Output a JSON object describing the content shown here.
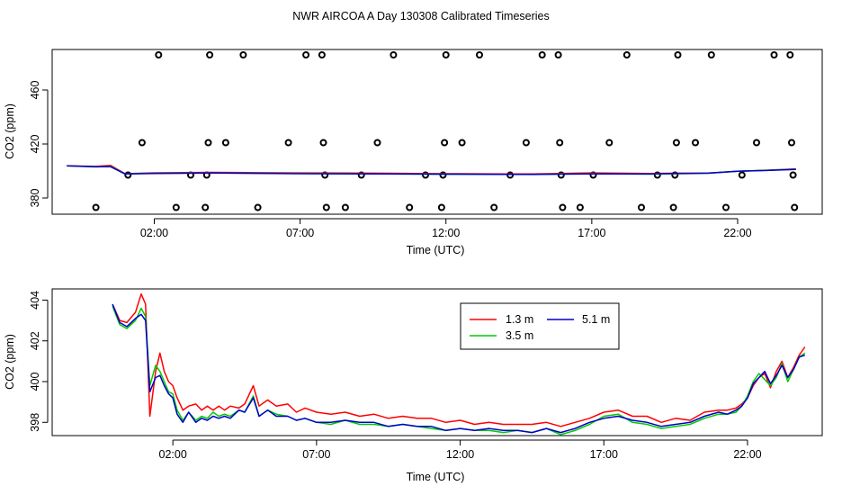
{
  "title": "NWR AIRCOA A  Day 130308  Calibrated Timeseries",
  "chart_data": [
    {
      "type": "scatter",
      "panel": "top",
      "xlabel": "Time (UTC)",
      "ylabel": "CO2 (ppm)",
      "xlim": [
        -1.5,
        24.9
      ],
      "ylim": [
        368,
        490
      ],
      "xticks": [
        2,
        7,
        12,
        17,
        22
      ],
      "xtick_labels": [
        "02:00",
        "07:00",
        "12:00",
        "17:00",
        "22:00"
      ],
      "yticks": [
        380,
        420,
        460
      ],
      "ytick_labels": [
        "380",
        "420",
        "460"
      ],
      "grid": false,
      "reference_points": [
        {
          "x": 0.0,
          "y": 373
        },
        {
          "x": 1.1,
          "y": 397
        },
        {
          "x": 1.58,
          "y": 421
        },
        {
          "x": 2.15,
          "y": 486
        },
        {
          "x": 2.75,
          "y": 373
        },
        {
          "x": 3.25,
          "y": 397
        },
        {
          "x": 3.75,
          "y": 373
        },
        {
          "x": 3.8,
          "y": 397
        },
        {
          "x": 3.85,
          "y": 421
        },
        {
          "x": 3.9,
          "y": 486
        },
        {
          "x": 4.45,
          "y": 421
        },
        {
          "x": 5.05,
          "y": 486
        },
        {
          "x": 5.55,
          "y": 373
        },
        {
          "x": 6.6,
          "y": 421
        },
        {
          "x": 7.2,
          "y": 486
        },
        {
          "x": 7.75,
          "y": 486
        },
        {
          "x": 7.8,
          "y": 421
        },
        {
          "x": 7.85,
          "y": 397
        },
        {
          "x": 7.9,
          "y": 373
        },
        {
          "x": 8.55,
          "y": 373
        },
        {
          "x": 9.1,
          "y": 397
        },
        {
          "x": 9.65,
          "y": 421
        },
        {
          "x": 10.2,
          "y": 486
        },
        {
          "x": 10.75,
          "y": 373
        },
        {
          "x": 11.3,
          "y": 397
        },
        {
          "x": 11.85,
          "y": 373
        },
        {
          "x": 11.9,
          "y": 397
        },
        {
          "x": 11.95,
          "y": 421
        },
        {
          "x": 12.0,
          "y": 486
        },
        {
          "x": 12.55,
          "y": 421
        },
        {
          "x": 13.15,
          "y": 486
        },
        {
          "x": 13.65,
          "y": 373
        },
        {
          "x": 14.2,
          "y": 397
        },
        {
          "x": 14.75,
          "y": 421
        },
        {
          "x": 15.3,
          "y": 486
        },
        {
          "x": 15.85,
          "y": 486
        },
        {
          "x": 15.9,
          "y": 421
        },
        {
          "x": 15.95,
          "y": 397
        },
        {
          "x": 16.0,
          "y": 373
        },
        {
          "x": 16.6,
          "y": 373
        },
        {
          "x": 17.05,
          "y": 397
        },
        {
          "x": 17.6,
          "y": 421
        },
        {
          "x": 18.2,
          "y": 486
        },
        {
          "x": 18.7,
          "y": 373
        },
        {
          "x": 19.25,
          "y": 397
        },
        {
          "x": 19.8,
          "y": 373
        },
        {
          "x": 19.85,
          "y": 397
        },
        {
          "x": 19.9,
          "y": 421
        },
        {
          "x": 19.95,
          "y": 486
        },
        {
          "x": 20.55,
          "y": 421
        },
        {
          "x": 21.1,
          "y": 486
        },
        {
          "x": 21.6,
          "y": 373
        },
        {
          "x": 22.15,
          "y": 397
        },
        {
          "x": 22.65,
          "y": 421
        },
        {
          "x": 23.25,
          "y": 486
        },
        {
          "x": 23.8,
          "y": 486
        },
        {
          "x": 23.85,
          "y": 421
        },
        {
          "x": 23.9,
          "y": 397
        },
        {
          "x": 23.95,
          "y": 373
        }
      ],
      "series": [
        {
          "name": "1.3 m",
          "color": "#ff0000",
          "x": [
            -1.0,
            0.0,
            0.5,
            1.0,
            2.0,
            4.0,
            7.0,
            10.0,
            12.0,
            14.0,
            15.0,
            17.0,
            19.0,
            20.0,
            21.0,
            22.0,
            23.0,
            24.0
          ],
          "y": [
            403.9,
            403.4,
            404.2,
            398.0,
            398.7,
            399.0,
            398.6,
            398.3,
            398.0,
            397.9,
            397.9,
            398.6,
            398.1,
            398.4,
            398.5,
            399.8,
            400.6,
            401.6
          ]
        },
        {
          "name": "3.5 m",
          "color": "#00cc00",
          "x": [
            -1.0,
            0.0,
            0.5,
            1.0,
            2.0,
            4.0,
            7.0,
            10.0,
            12.0,
            14.0,
            15.0,
            17.0,
            19.0,
            20.0,
            21.0,
            22.0,
            23.0,
            24.0
          ],
          "y": [
            403.9,
            403.0,
            403.5,
            397.8,
            398.3,
            398.6,
            398.1,
            397.8,
            397.6,
            397.5,
            397.4,
            398.0,
            397.7,
            398.0,
            398.3,
            399.8,
            400.5,
            401.3
          ]
        },
        {
          "name": "5.1 m",
          "color": "#0000cc",
          "x": [
            -1.0,
            0.0,
            0.5,
            1.0,
            2.0,
            4.0,
            7.0,
            10.0,
            12.0,
            14.0,
            15.0,
            17.0,
            19.0,
            20.0,
            21.0,
            22.0,
            23.0,
            24.0
          ],
          "y": [
            403.9,
            403.1,
            403.2,
            397.8,
            398.2,
            398.5,
            398.0,
            397.8,
            397.7,
            397.5,
            397.5,
            397.9,
            397.8,
            398.1,
            398.4,
            399.8,
            400.4,
            401.2
          ]
        }
      ]
    },
    {
      "type": "line",
      "panel": "bottom",
      "xlabel": "Time (UTC)",
      "ylabel": "CO2 (ppm)",
      "xlim": [
        -2.2,
        24.6
      ],
      "ylim": [
        397.35,
        404.55
      ],
      "xticks": [
        2,
        7,
        12,
        17,
        22
      ],
      "xtick_labels": [
        "02:00",
        "07:00",
        "12:00",
        "17:00",
        "22:00"
      ],
      "yticks": [
        398,
        400,
        402,
        404
      ],
      "ytick_labels": [
        "398",
        "400",
        "402",
        "404"
      ],
      "grid": false,
      "legend_position": "top-right",
      "series": [
        {
          "name": "1.3 m",
          "color": "#ff0000",
          "x": [
            -0.1,
            0.15,
            0.4,
            0.7,
            0.9,
            1.05,
            1.2,
            1.4,
            1.55,
            1.7,
            1.85,
            2.0,
            2.15,
            2.35,
            2.55,
            2.8,
            3.0,
            3.2,
            3.4,
            3.6,
            3.8,
            4.0,
            4.3,
            4.5,
            4.8,
            5.0,
            5.3,
            5.6,
            6.0,
            6.3,
            6.6,
            7.0,
            7.5,
            8.0,
            8.5,
            9.0,
            9.5,
            10.0,
            10.5,
            11.0,
            11.5,
            12.0,
            12.5,
            13.0,
            13.5,
            14.0,
            14.5,
            15.0,
            15.5,
            16.0,
            16.5,
            17.0,
            17.5,
            18.0,
            18.5,
            19.0,
            19.5,
            20.0,
            20.5,
            21.0,
            21.3,
            21.6,
            21.8,
            22.0,
            22.2,
            22.4,
            22.6,
            22.8,
            23.0,
            23.2,
            23.4,
            23.6,
            23.8,
            24.0
          ],
          "y": [
            403.8,
            403.0,
            402.9,
            403.4,
            404.3,
            403.8,
            398.3,
            400.5,
            401.4,
            400.5,
            400.0,
            399.8,
            399.2,
            398.6,
            398.8,
            398.9,
            398.6,
            398.8,
            398.6,
            398.8,
            398.6,
            398.8,
            398.7,
            398.9,
            399.8,
            398.8,
            399.1,
            398.8,
            398.9,
            398.5,
            398.7,
            398.5,
            398.4,
            398.5,
            398.3,
            398.4,
            398.2,
            398.3,
            398.2,
            398.2,
            398.0,
            398.1,
            397.9,
            398.0,
            397.9,
            397.9,
            397.9,
            398.0,
            397.8,
            398.0,
            398.2,
            398.5,
            398.6,
            398.3,
            398.3,
            398.0,
            398.2,
            398.1,
            398.5,
            398.6,
            398.6,
            398.7,
            398.9,
            399.2,
            399.8,
            400.2,
            400.4,
            399.7,
            400.5,
            401.0,
            400.2,
            400.7,
            401.3,
            401.7
          ]
        },
        {
          "name": "3.5 m",
          "color": "#00cc00",
          "x": [
            -0.1,
            0.15,
            0.4,
            0.7,
            0.9,
            1.05,
            1.2,
            1.4,
            1.55,
            1.7,
            1.85,
            2.0,
            2.15,
            2.35,
            2.55,
            2.8,
            3.0,
            3.2,
            3.4,
            3.6,
            3.8,
            4.0,
            4.3,
            4.5,
            4.8,
            5.0,
            5.3,
            5.6,
            6.0,
            6.3,
            6.6,
            7.0,
            7.5,
            8.0,
            8.5,
            9.0,
            9.5,
            10.0,
            10.5,
            11.0,
            11.5,
            12.0,
            12.5,
            13.0,
            13.5,
            14.0,
            14.5,
            15.0,
            15.5,
            16.0,
            16.5,
            17.0,
            17.5,
            18.0,
            18.5,
            19.0,
            19.5,
            20.0,
            20.5,
            21.0,
            21.3,
            21.6,
            21.8,
            22.0,
            22.2,
            22.4,
            22.6,
            22.8,
            23.0,
            23.2,
            23.4,
            23.6,
            23.8,
            24.0
          ],
          "y": [
            403.7,
            402.8,
            402.6,
            403.0,
            403.6,
            403.2,
            399.8,
            400.8,
            400.5,
            400.0,
            399.5,
            399.4,
            398.6,
            398.1,
            398.5,
            398.1,
            398.3,
            398.2,
            398.5,
            398.3,
            398.4,
            398.3,
            398.6,
            398.5,
            399.3,
            398.3,
            398.6,
            398.4,
            398.3,
            398.1,
            398.2,
            398.0,
            397.9,
            398.1,
            397.9,
            397.9,
            397.8,
            397.9,
            397.8,
            397.7,
            397.6,
            397.7,
            397.6,
            397.6,
            397.5,
            397.6,
            397.5,
            397.7,
            397.4,
            397.6,
            397.9,
            398.3,
            398.4,
            398.0,
            397.9,
            397.7,
            397.8,
            397.9,
            398.2,
            398.4,
            398.4,
            398.5,
            398.8,
            399.3,
            400.0,
            400.4,
            400.1,
            399.8,
            400.2,
            400.9,
            400.0,
            400.6,
            401.2,
            401.4
          ]
        },
        {
          "name": "5.1 m",
          "color": "#0000cc",
          "x": [
            -0.1,
            0.15,
            0.4,
            0.7,
            0.9,
            1.05,
            1.2,
            1.4,
            1.55,
            1.7,
            1.85,
            2.0,
            2.15,
            2.35,
            2.55,
            2.8,
            3.0,
            3.2,
            3.4,
            3.6,
            3.8,
            4.0,
            4.3,
            4.5,
            4.8,
            5.0,
            5.3,
            5.6,
            6.0,
            6.3,
            6.6,
            7.0,
            7.5,
            8.0,
            8.5,
            9.0,
            9.5,
            10.0,
            10.5,
            11.0,
            11.5,
            12.0,
            12.5,
            13.0,
            13.5,
            14.0,
            14.5,
            15.0,
            15.5,
            16.0,
            16.5,
            17.0,
            17.5,
            18.0,
            18.5,
            19.0,
            19.5,
            20.0,
            20.5,
            21.0,
            21.3,
            21.6,
            21.8,
            22.0,
            22.2,
            22.4,
            22.6,
            22.8,
            23.0,
            23.2,
            23.4,
            23.6,
            23.8,
            24.0
          ],
          "y": [
            403.8,
            402.9,
            402.7,
            403.1,
            403.3,
            403.0,
            399.5,
            400.2,
            400.3,
            399.8,
            399.4,
            399.2,
            398.4,
            398.0,
            398.5,
            398.0,
            398.2,
            398.1,
            398.3,
            398.2,
            398.3,
            398.2,
            398.6,
            398.5,
            399.2,
            398.3,
            398.6,
            398.3,
            398.3,
            398.1,
            398.2,
            398.0,
            398.0,
            398.1,
            398.0,
            398.0,
            397.8,
            397.9,
            397.8,
            397.8,
            397.6,
            397.7,
            397.6,
            397.7,
            397.6,
            397.6,
            397.5,
            397.7,
            397.5,
            397.7,
            398.0,
            398.2,
            398.3,
            398.1,
            398.0,
            397.8,
            397.9,
            398.0,
            398.3,
            398.5,
            398.4,
            398.6,
            398.8,
            399.2,
            399.9,
            400.2,
            400.5,
            399.9,
            400.3,
            400.8,
            400.2,
            400.6,
            401.2,
            401.3
          ]
        }
      ],
      "legend": [
        {
          "label": "1.3 m",
          "color": "#ff0000"
        },
        {
          "label": "5.1 m",
          "color": "#0000cc"
        },
        {
          "label": "3.5 m",
          "color": "#00cc00"
        }
      ]
    }
  ]
}
